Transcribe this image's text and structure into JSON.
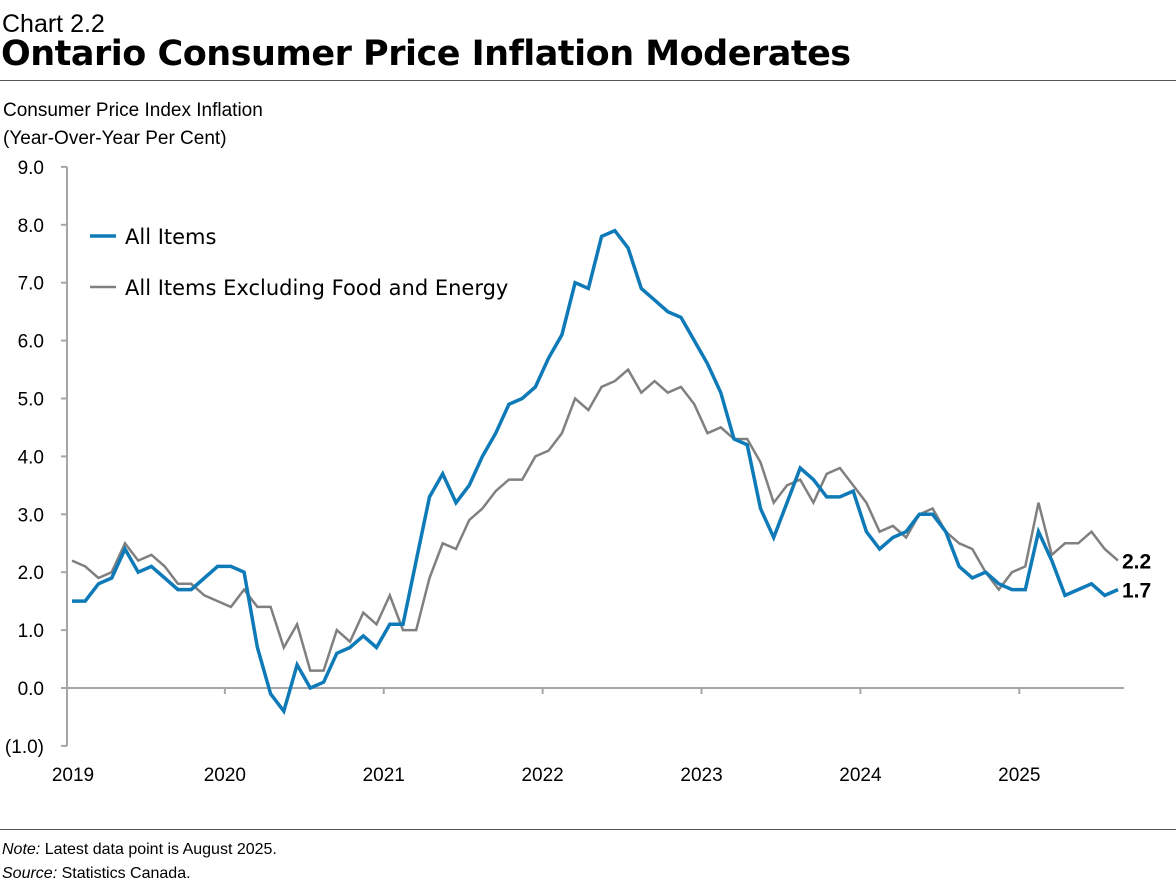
{
  "header": {
    "kicker": "Chart 2.2",
    "title": "Ontario Consumer Price Inflation Moderates"
  },
  "footer": {
    "note_label": "Note:",
    "note_text": " Latest data point is August 2025.",
    "source_label": "Source:",
    "source_text": " Statistics Canada."
  },
  "colors": {
    "all_items": "#0E7AB8",
    "core": "#808080",
    "axis": "#A6A6A6"
  },
  "chart_data": {
    "type": "line",
    "title": "Ontario Consumer Price Inflation Moderates",
    "ylabel": [
      "Consumer Price Index Inflation",
      "(Year-Over-Year Per Cent)"
    ],
    "xlabel": "",
    "ylim": [
      -1.0,
      9.0
    ],
    "yticks": [
      "(1.0)",
      "0.0",
      "1.0",
      "2.0",
      "3.0",
      "4.0",
      "5.0",
      "6.0",
      "7.0",
      "8.0",
      "9.0"
    ],
    "xticks": [
      "2019",
      "2020",
      "2021",
      "2022",
      "2023",
      "2024",
      "2025"
    ],
    "x_start": "2019-01",
    "x_end": "2025-08",
    "frequency": "monthly",
    "grid": false,
    "legend_position": "top-left",
    "series": [
      {
        "name": "All Items",
        "end_label": "1.7",
        "values": [
          1.5,
          1.5,
          1.8,
          1.9,
          2.4,
          2.0,
          2.1,
          1.9,
          1.7,
          1.7,
          1.9,
          2.1,
          2.1,
          2.0,
          0.7,
          -0.1,
          -0.4,
          0.4,
          0.0,
          0.1,
          0.6,
          0.7,
          0.9,
          0.7,
          1.1,
          1.1,
          2.2,
          3.3,
          3.7,
          3.2,
          3.5,
          4.0,
          4.4,
          4.9,
          5.0,
          5.2,
          5.7,
          6.1,
          7.0,
          6.9,
          7.8,
          7.9,
          7.6,
          6.9,
          6.7,
          6.5,
          6.4,
          6.0,
          5.6,
          5.1,
          4.3,
          4.2,
          3.1,
          2.6,
          3.2,
          3.8,
          3.6,
          3.3,
          3.3,
          3.4,
          2.7,
          2.4,
          2.6,
          2.7,
          3.0,
          3.0,
          2.7,
          2.1,
          1.9,
          2.0,
          1.8,
          1.7,
          1.7,
          2.7,
          2.2,
          1.6,
          1.7,
          1.8,
          1.6,
          1.7
        ]
      },
      {
        "name": "All Items Excluding Food and Energy",
        "end_label": "2.2",
        "values": [
          2.2,
          2.1,
          1.9,
          2.0,
          2.5,
          2.2,
          2.3,
          2.1,
          1.8,
          1.8,
          1.6,
          1.5,
          1.4,
          1.7,
          1.4,
          1.4,
          0.7,
          1.1,
          0.3,
          0.3,
          1.0,
          0.8,
          1.3,
          1.1,
          1.6,
          1.0,
          1.0,
          1.9,
          2.5,
          2.4,
          2.9,
          3.1,
          3.4,
          3.6,
          3.6,
          4.0,
          4.1,
          4.4,
          5.0,
          4.8,
          5.2,
          5.3,
          5.5,
          5.1,
          5.3,
          5.1,
          5.2,
          4.9,
          4.4,
          4.5,
          4.3,
          4.3,
          3.9,
          3.2,
          3.5,
          3.6,
          3.2,
          3.7,
          3.8,
          3.5,
          3.2,
          2.7,
          2.8,
          2.6,
          3.0,
          3.1,
          2.7,
          2.5,
          2.4,
          2.0,
          1.7,
          2.0,
          2.1,
          3.2,
          2.3,
          2.5,
          2.5,
          2.7,
          2.4,
          2.2
        ]
      }
    ]
  }
}
